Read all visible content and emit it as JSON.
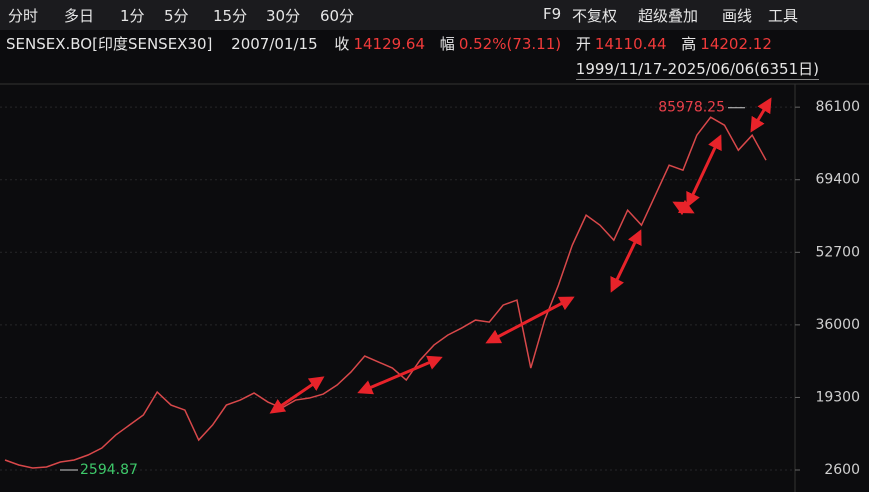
{
  "toolbar": {
    "periods": [
      "分时",
      "多日",
      "1分",
      "5分",
      "15分",
      "30分",
      "60分"
    ],
    "tools": [
      "F9",
      "不复权",
      "超级叠加",
      "画线",
      "工具"
    ]
  },
  "info": {
    "name": "SENSEX.BO[印度SENSEX30]",
    "date": "2007/01/15",
    "close_label": "收",
    "close": "14129.64",
    "change_label": "幅",
    "change": "0.52%(73.11)",
    "open_label": "开",
    "open": "14110.44",
    "high_label": "高",
    "high": "14202.12"
  },
  "range": "1999/11/17-2025/06/06(6351日)",
  "chart_data": {
    "type": "line",
    "color": "#d8484a",
    "values": [
      4900,
      3750,
      3060,
      3290,
      4440,
      4900,
      6050,
      7660,
      10650,
      12950,
      15250,
      20540,
      17550,
      16400,
      9500,
      12950,
      17550,
      18700,
      20310,
      18240,
      16860,
      18700,
      19160,
      20080,
      22150,
      25140,
      28820,
      27440,
      26060,
      23300,
      27900,
      31350,
      33650,
      35260,
      37100,
      36640,
      40550,
      41700,
      26060,
      37100,
      45150,
      54350,
      61250,
      58950,
      55500,
      62400,
      58950,
      65850,
      72750,
      71600,
      79650,
      83790,
      81950,
      76200,
      79650,
      73900
    ],
    "ylim": [
      -850,
      91200
    ],
    "yticks": [
      2600,
      19300,
      36000,
      52700,
      69400,
      86100
    ],
    "grid": true,
    "annotations": [
      {
        "value": 85978.25,
        "label": "85978.25",
        "color": "#e8404a"
      },
      {
        "value": 2594.87,
        "label": "2594.87",
        "color": "#3ec86a"
      }
    ]
  }
}
